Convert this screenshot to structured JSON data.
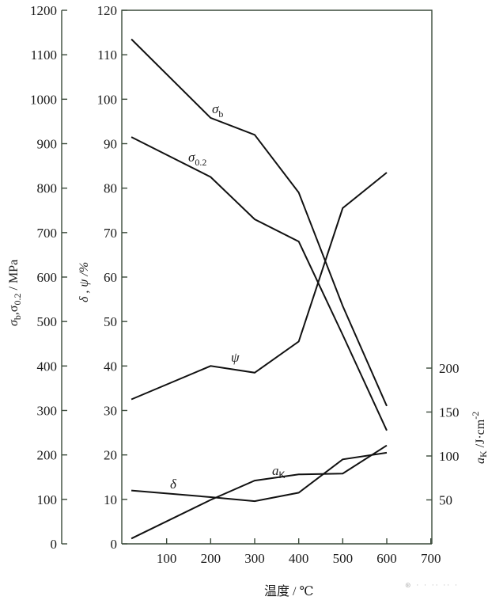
{
  "chart_data": {
    "type": "line",
    "title": "",
    "xlabel": "温度 / ℃",
    "x_ticks": [
      100,
      200,
      300,
      400,
      500,
      600,
      700
    ],
    "xlim": [
      0,
      700
    ],
    "axes": {
      "left": {
        "label": "σb, σ0.2 / MPa",
        "ticks": [
          0,
          100,
          200,
          300,
          400,
          500,
          600,
          700,
          800,
          900,
          1000,
          1100,
          1200
        ],
        "ylim": [
          0,
          1200
        ]
      },
      "middle": {
        "label": "δ, ψ /%",
        "ticks": [
          0,
          10,
          20,
          30,
          40,
          50,
          60,
          70,
          80,
          90,
          100,
          110,
          120
        ],
        "ylim": [
          0,
          120
        ]
      },
      "right": {
        "label": "aK /J·cm⁻²",
        "ticks": [
          50,
          100,
          150,
          200
        ],
        "ylim": [
          0,
          300
        ]
      }
    },
    "series": [
      {
        "name": "σb",
        "axis": "left",
        "x": [
          20,
          200,
          300,
          400,
          500,
          600
        ],
        "values": [
          1135,
          958,
          920,
          790,
          535,
          310
        ]
      },
      {
        "name": "σ0.2",
        "axis": "left",
        "x": [
          20,
          200,
          300,
          400,
          500,
          600
        ],
        "values": [
          915,
          825,
          730,
          680,
          470,
          255
        ]
      },
      {
        "name": "ψ",
        "axis": "middle",
        "x": [
          20,
          200,
          300,
          400,
          500,
          600
        ],
        "values": [
          32.5,
          40,
          38.5,
          45.5,
          75.5,
          83.5
        ]
      },
      {
        "name": "δ",
        "axis": "middle",
        "x": [
          20,
          200,
          300,
          400,
          500,
          600
        ],
        "values": [
          12,
          10.5,
          9.6,
          11.5,
          19,
          20.5
        ]
      },
      {
        "name": "aK",
        "axis": "right",
        "x": [
          20,
          200,
          300,
          400,
          500,
          600
        ],
        "values": [
          6,
          50,
          72,
          79,
          80,
          112
        ]
      }
    ],
    "grid": false,
    "legend": "inline labels"
  },
  "labels": {
    "left_axis_title_main": "σ",
    "left_axis_title_sub1": "b",
    "left_axis_title_mid": ",σ",
    "left_axis_title_sub2": "0.2",
    "left_axis_title_unit": " / MPa",
    "middle_axis_title": "δ , ψ /%",
    "right_axis_title_main": "a",
    "right_axis_title_sub": "K",
    "right_axis_title_unit": " /J·cm",
    "right_axis_title_exp": "-2",
    "x_axis_title": "温度 / ℃",
    "sigma_b_main": "σ",
    "sigma_b_sub": "b",
    "sigma_02_main": "σ",
    "sigma_02_sub": "0.2",
    "psi": "ψ",
    "delta": "δ",
    "ak_main": "a",
    "ak_sub": "K"
  },
  "watermark": "⊛ · · ·· ·· ·"
}
